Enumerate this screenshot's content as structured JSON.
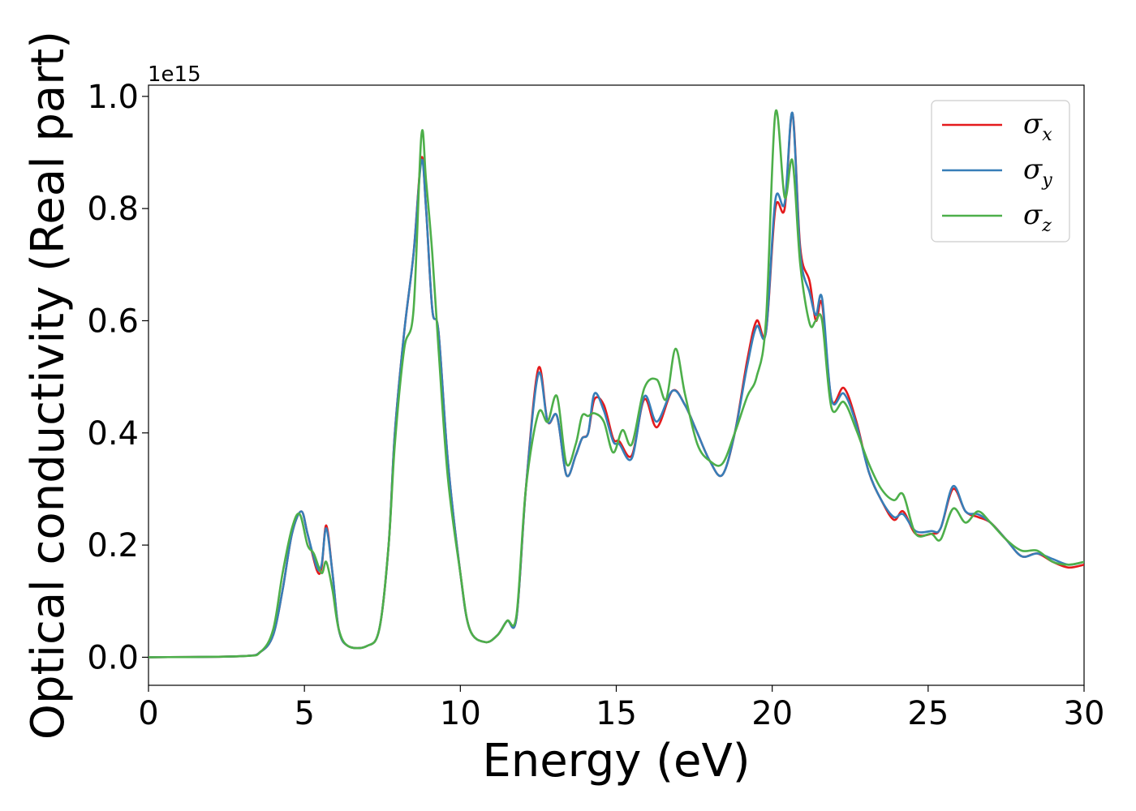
{
  "chart_data": {
    "type": "line",
    "xlabel": "Energy (eV)",
    "ylabel": "Optical conductivity (Real part)",
    "y_offset_label": "1e15",
    "xlim": [
      0,
      30
    ],
    "ylim": [
      -0.05,
      1.02
    ],
    "x_ticks": [
      0,
      5,
      10,
      15,
      20,
      25,
      30
    ],
    "x_tick_labels": [
      "0",
      "5",
      "10",
      "15",
      "20",
      "25",
      "30"
    ],
    "y_ticks": [
      0.0,
      0.2,
      0.4,
      0.6,
      0.8,
      1.0
    ],
    "y_tick_labels": [
      "0.0",
      "0.2",
      "0.4",
      "0.6",
      "0.8",
      "1.0"
    ],
    "grid": false,
    "legend_position": "top-right",
    "series": [
      {
        "name": "σx",
        "symbol": "σ",
        "subscript": "x",
        "color": "#e41a1c",
        "points": [
          [
            0,
            0
          ],
          [
            3,
            0.002
          ],
          [
            3.6,
            0.01
          ],
          [
            4,
            0.04
          ],
          [
            4.3,
            0.12
          ],
          [
            4.6,
            0.22
          ],
          [
            4.9,
            0.26
          ],
          [
            5.1,
            0.22
          ],
          [
            5.4,
            0.155
          ],
          [
            5.55,
            0.16
          ],
          [
            5.7,
            0.235
          ],
          [
            5.9,
            0.15
          ],
          [
            6.1,
            0.05
          ],
          [
            6.4,
            0.02
          ],
          [
            7,
            0.02
          ],
          [
            7.4,
            0.05
          ],
          [
            7.7,
            0.2
          ],
          [
            7.9,
            0.4
          ],
          [
            8.2,
            0.58
          ],
          [
            8.5,
            0.72
          ],
          [
            8.75,
            0.89
          ],
          [
            8.9,
            0.8
          ],
          [
            9.1,
            0.62
          ],
          [
            9.3,
            0.58
          ],
          [
            9.6,
            0.35
          ],
          [
            10,
            0.15
          ],
          [
            10.3,
            0.05
          ],
          [
            10.8,
            0.027
          ],
          [
            11.2,
            0.04
          ],
          [
            11.5,
            0.065
          ],
          [
            11.8,
            0.07
          ],
          [
            12.1,
            0.3
          ],
          [
            12.5,
            0.515
          ],
          [
            12.8,
            0.42
          ],
          [
            13.1,
            0.43
          ],
          [
            13.4,
            0.325
          ],
          [
            13.7,
            0.36
          ],
          [
            13.9,
            0.39
          ],
          [
            14.1,
            0.4
          ],
          [
            14.3,
            0.46
          ],
          [
            14.6,
            0.45
          ],
          [
            14.9,
            0.39
          ],
          [
            15.1,
            0.385
          ],
          [
            15.5,
            0.36
          ],
          [
            15.9,
            0.46
          ],
          [
            16.3,
            0.41
          ],
          [
            16.8,
            0.475
          ],
          [
            17.2,
            0.45
          ],
          [
            17.6,
            0.4
          ],
          [
            18,
            0.35
          ],
          [
            18.4,
            0.325
          ],
          [
            18.8,
            0.4
          ],
          [
            19.2,
            0.53
          ],
          [
            19.5,
            0.6
          ],
          [
            19.8,
            0.58
          ],
          [
            20.1,
            0.8
          ],
          [
            20.4,
            0.8
          ],
          [
            20.65,
            0.97
          ],
          [
            20.9,
            0.73
          ],
          [
            21.2,
            0.67
          ],
          [
            21.4,
            0.6
          ],
          [
            21.6,
            0.63
          ],
          [
            21.9,
            0.46
          ],
          [
            22.3,
            0.48
          ],
          [
            22.7,
            0.42
          ],
          [
            23.1,
            0.33
          ],
          [
            23.5,
            0.28
          ],
          [
            23.9,
            0.245
          ],
          [
            24.2,
            0.26
          ],
          [
            24.6,
            0.22
          ],
          [
            25.1,
            0.22
          ],
          [
            25.4,
            0.23
          ],
          [
            25.8,
            0.3
          ],
          [
            26.2,
            0.26
          ],
          [
            26.6,
            0.25
          ],
          [
            27,
            0.24
          ],
          [
            27.5,
            0.21
          ],
          [
            28,
            0.18
          ],
          [
            28.5,
            0.185
          ],
          [
            29,
            0.17
          ],
          [
            29.5,
            0.16
          ],
          [
            30,
            0.165
          ]
        ]
      },
      {
        "name": "σy",
        "symbol": "σ",
        "subscript": "y",
        "color": "#377eb8",
        "points": [
          [
            0,
            0
          ],
          [
            3,
            0.002
          ],
          [
            3.6,
            0.01
          ],
          [
            4,
            0.04
          ],
          [
            4.3,
            0.12
          ],
          [
            4.6,
            0.22
          ],
          [
            4.9,
            0.26
          ],
          [
            5.1,
            0.22
          ],
          [
            5.4,
            0.16
          ],
          [
            5.55,
            0.165
          ],
          [
            5.7,
            0.23
          ],
          [
            5.9,
            0.15
          ],
          [
            6.1,
            0.05
          ],
          [
            6.4,
            0.02
          ],
          [
            7,
            0.02
          ],
          [
            7.4,
            0.05
          ],
          [
            7.7,
            0.2
          ],
          [
            7.9,
            0.4
          ],
          [
            8.2,
            0.58
          ],
          [
            8.5,
            0.72
          ],
          [
            8.75,
            0.885
          ],
          [
            8.9,
            0.8
          ],
          [
            9.1,
            0.62
          ],
          [
            9.3,
            0.58
          ],
          [
            9.6,
            0.35
          ],
          [
            10,
            0.15
          ],
          [
            10.3,
            0.05
          ],
          [
            10.8,
            0.027
          ],
          [
            11.2,
            0.04
          ],
          [
            11.5,
            0.065
          ],
          [
            11.8,
            0.07
          ],
          [
            12.1,
            0.3
          ],
          [
            12.5,
            0.505
          ],
          [
            12.8,
            0.42
          ],
          [
            13.1,
            0.43
          ],
          [
            13.4,
            0.325
          ],
          [
            13.7,
            0.36
          ],
          [
            13.9,
            0.39
          ],
          [
            14.1,
            0.4
          ],
          [
            14.3,
            0.47
          ],
          [
            14.6,
            0.44
          ],
          [
            14.9,
            0.385
          ],
          [
            15.1,
            0.38
          ],
          [
            15.5,
            0.355
          ],
          [
            15.9,
            0.465
          ],
          [
            16.3,
            0.42
          ],
          [
            16.8,
            0.475
          ],
          [
            17.2,
            0.45
          ],
          [
            17.6,
            0.4
          ],
          [
            18,
            0.35
          ],
          [
            18.4,
            0.325
          ],
          [
            18.8,
            0.4
          ],
          [
            19.2,
            0.52
          ],
          [
            19.5,
            0.59
          ],
          [
            19.8,
            0.58
          ],
          [
            20.1,
            0.815
          ],
          [
            20.4,
            0.81
          ],
          [
            20.65,
            0.97
          ],
          [
            20.9,
            0.72
          ],
          [
            21.2,
            0.65
          ],
          [
            21.4,
            0.61
          ],
          [
            21.6,
            0.64
          ],
          [
            21.9,
            0.46
          ],
          [
            22.3,
            0.47
          ],
          [
            22.7,
            0.415
          ],
          [
            23.1,
            0.33
          ],
          [
            23.5,
            0.28
          ],
          [
            23.9,
            0.25
          ],
          [
            24.2,
            0.255
          ],
          [
            24.6,
            0.225
          ],
          [
            25.1,
            0.225
          ],
          [
            25.4,
            0.23
          ],
          [
            25.8,
            0.305
          ],
          [
            26.2,
            0.26
          ],
          [
            26.6,
            0.255
          ],
          [
            27,
            0.24
          ],
          [
            27.5,
            0.21
          ],
          [
            28,
            0.18
          ],
          [
            28.5,
            0.185
          ],
          [
            29,
            0.175
          ],
          [
            29.5,
            0.165
          ],
          [
            30,
            0.17
          ]
        ]
      },
      {
        "name": "σz",
        "symbol": "σ",
        "subscript": "z",
        "color": "#4daf4a",
        "points": [
          [
            0,
            0
          ],
          [
            3,
            0.002
          ],
          [
            3.6,
            0.01
          ],
          [
            4,
            0.05
          ],
          [
            4.3,
            0.15
          ],
          [
            4.6,
            0.23
          ],
          [
            4.85,
            0.255
          ],
          [
            5.1,
            0.2
          ],
          [
            5.3,
            0.185
          ],
          [
            5.55,
            0.15
          ],
          [
            5.7,
            0.17
          ],
          [
            5.9,
            0.12
          ],
          [
            6.1,
            0.05
          ],
          [
            6.4,
            0.02
          ],
          [
            7,
            0.02
          ],
          [
            7.4,
            0.05
          ],
          [
            7.7,
            0.2
          ],
          [
            7.9,
            0.38
          ],
          [
            8.2,
            0.55
          ],
          [
            8.5,
            0.62
          ],
          [
            8.75,
            0.93
          ],
          [
            8.9,
            0.85
          ],
          [
            9.1,
            0.72
          ],
          [
            9.3,
            0.55
          ],
          [
            9.6,
            0.32
          ],
          [
            10,
            0.15
          ],
          [
            10.3,
            0.05
          ],
          [
            10.8,
            0.027
          ],
          [
            11.2,
            0.04
          ],
          [
            11.5,
            0.065
          ],
          [
            11.8,
            0.075
          ],
          [
            12.1,
            0.3
          ],
          [
            12.5,
            0.435
          ],
          [
            12.8,
            0.42
          ],
          [
            13.1,
            0.465
          ],
          [
            13.4,
            0.345
          ],
          [
            13.7,
            0.38
          ],
          [
            13.9,
            0.43
          ],
          [
            14.1,
            0.43
          ],
          [
            14.3,
            0.435
          ],
          [
            14.6,
            0.42
          ],
          [
            14.9,
            0.365
          ],
          [
            15.2,
            0.405
          ],
          [
            15.5,
            0.38
          ],
          [
            15.9,
            0.48
          ],
          [
            16.3,
            0.495
          ],
          [
            16.6,
            0.46
          ],
          [
            16.9,
            0.55
          ],
          [
            17.2,
            0.47
          ],
          [
            17.6,
            0.38
          ],
          [
            18,
            0.35
          ],
          [
            18.4,
            0.345
          ],
          [
            18.8,
            0.4
          ],
          [
            19.2,
            0.465
          ],
          [
            19.5,
            0.5
          ],
          [
            19.8,
            0.6
          ],
          [
            20.1,
            0.97
          ],
          [
            20.4,
            0.82
          ],
          [
            20.65,
            0.885
          ],
          [
            20.9,
            0.7
          ],
          [
            21.2,
            0.595
          ],
          [
            21.4,
            0.6
          ],
          [
            21.6,
            0.6
          ],
          [
            21.9,
            0.445
          ],
          [
            22.3,
            0.455
          ],
          [
            22.7,
            0.405
          ],
          [
            23.1,
            0.345
          ],
          [
            23.5,
            0.3
          ],
          [
            23.9,
            0.28
          ],
          [
            24.2,
            0.29
          ],
          [
            24.6,
            0.22
          ],
          [
            25.1,
            0.22
          ],
          [
            25.4,
            0.21
          ],
          [
            25.8,
            0.265
          ],
          [
            26.2,
            0.24
          ],
          [
            26.6,
            0.26
          ],
          [
            27,
            0.24
          ],
          [
            27.5,
            0.21
          ],
          [
            28,
            0.19
          ],
          [
            28.5,
            0.19
          ],
          [
            29,
            0.17
          ],
          [
            29.5,
            0.165
          ],
          [
            30,
            0.17
          ]
        ]
      }
    ]
  }
}
